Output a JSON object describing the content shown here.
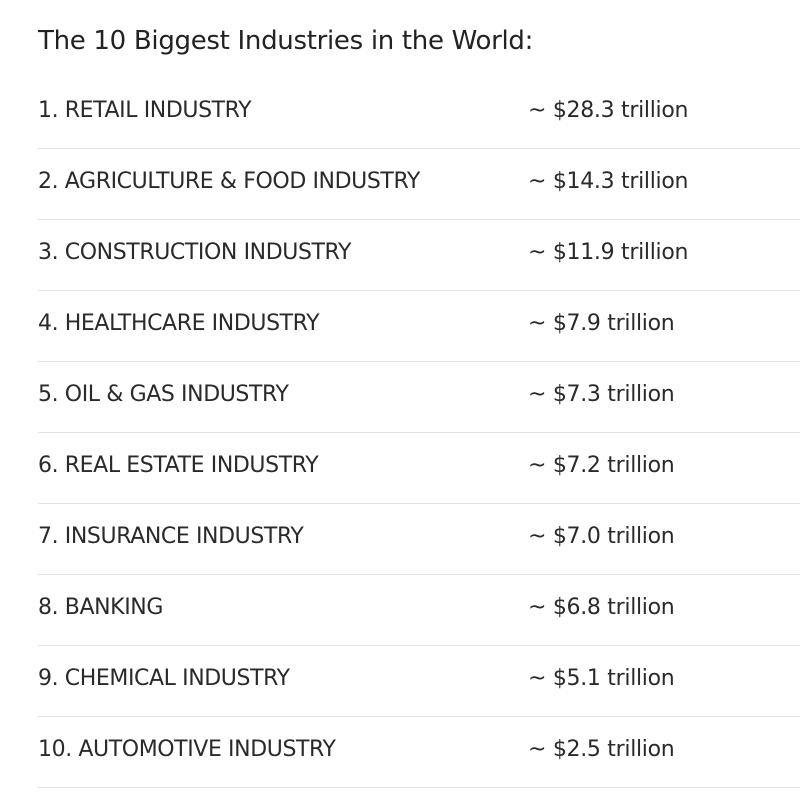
{
  "title": "The 10 Biggest Industries in the World:",
  "industries": [
    {
      "label": "1. RETAIL INDUSTRY",
      "value": "~ $28.3 trillion"
    },
    {
      "label": "2. AGRICULTURE & FOOD INDUSTRY",
      "value": "~ $14.3 trillion"
    },
    {
      "label": "3. CONSTRUCTION INDUSTRY",
      "value": "~ $11.9 trillion"
    },
    {
      "label": "4. HEALTHCARE INDUSTRY",
      "value": "~ $7.9 trillion"
    },
    {
      "label": "5. OIL & GAS INDUSTRY",
      "value": "~ $7.3 trillion"
    },
    {
      "label": "6. REAL ESTATE INDUSTRY",
      "value": "~ $7.2 trillion"
    },
    {
      "label": "7. INSURANCE INDUSTRY",
      "value": "~ $7.0 trillion"
    },
    {
      "label": "8. BANKING",
      "value": "~ $6.8 trillion"
    },
    {
      "label": "9. CHEMICAL INDUSTRY",
      "value": "~ $5.1 trillion"
    },
    {
      "label": "10. AUTOMOTIVE INDUSTRY",
      "value": "~ $2.5 trillion"
    }
  ]
}
